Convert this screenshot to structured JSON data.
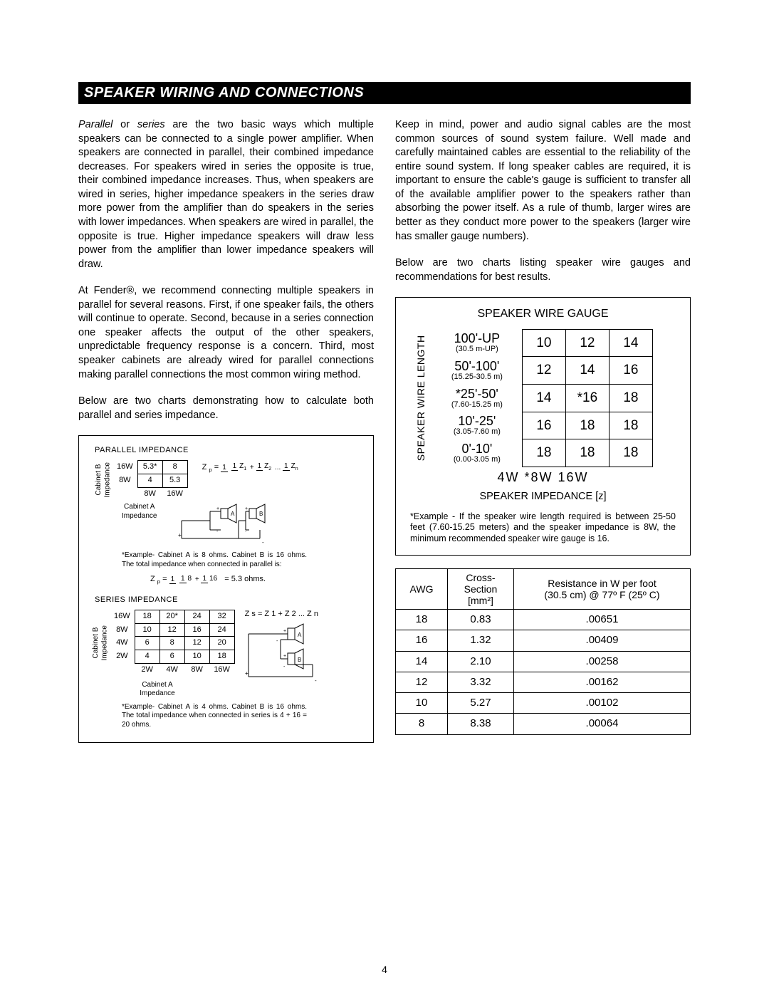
{
  "title": "SPEAKER WIRING AND CONNECTIONS",
  "page_number": "4",
  "left": {
    "p1_a": "Parallel",
    "p1_b": " or ",
    "p1_c": "series",
    "p1_d": " are the two basic ways which multiple speakers can be connected to a single power amplifier. When speakers are connected in parallel, their combined impedance decreases. For speakers wired in series the opposite is true, their combined impedance increases. Thus, when speakers are wired in series, higher impedance speakers in the series draw more power from the amplifier than do speakers in the series with lower impedances. When speakers are wired in parallel, the opposite is true. Higher impedance speakers will draw less power from the amplifier than lower impedance speakers will draw.",
    "p2": "At Fender®, we recommend connecting multiple speakers in parallel for several reasons. First, if one speaker fails, the others will continue to operate. Second, because in a series connection one speaker affects the output of the other speakers, unpredictable frequency response is a concern. Third, most speaker cabinets are already wired for parallel connections making parallel connections the most common wiring method.",
    "p3": "Below are two charts demonstrating how to calculate both parallel and series impedance.",
    "chart": {
      "parallel_title": "PARALLEL  IMPEDANCE",
      "series_title": "SERIES  IMPEDANCE",
      "cabB_label": "Cabinet B\nImpedance",
      "cabA_label": "Cabinet A\nImpedance",
      "parallel_rows": {
        "row_hdr": [
          "16W",
          "8W"
        ],
        "col_hdr": [
          "8W",
          "16W"
        ],
        "cells": [
          [
            "5.3*",
            "8"
          ],
          [
            "4",
            "5.3"
          ]
        ]
      },
      "parallel_formula_label": "Z p =",
      "parallel_example": "*Example- Cabinet A is 8 ohms. Cabinet B is 16 ohms. The total impedance when connected in parallel is:",
      "parallel_result": "= 5.3 ohms.",
      "series_rows": {
        "row_hdr": [
          "16W",
          "8W",
          "4W",
          "2W"
        ],
        "col_hdr": [
          "2W",
          "4W",
          "8W",
          "16W"
        ],
        "cells": [
          [
            "18",
            "20*",
            "24",
            "32"
          ],
          [
            "10",
            "12",
            "16",
            "24"
          ],
          [
            "6",
            "8",
            "12",
            "20"
          ],
          [
            "4",
            "6",
            "10",
            "18"
          ]
        ]
      },
      "series_formula": "Z s  =   Z 1 +  Z 2 ... Z n",
      "series_example": "*Example- Cabinet A is 4 ohms. Cabinet B is 16 ohms. The total impedance when connected in series is  4  +  16  =  20 ohms."
    }
  },
  "right": {
    "p1": "Keep in mind, power and audio signal cables are the most common sources of sound system failure. Well made and carefully maintained cables are essential to the reliability of the entire sound system. If long speaker cables are required, it is important to ensure the cable's gauge is sufficient to transfer all of the available amplifier power to the speakers rather than absorbing the power itself. As a rule of thumb, larger wires are better as they conduct more power to the speakers (larger wire has smaller gauge numbers).",
    "p2": "Below are two charts listing speaker wire gauges and recommendations for best results.",
    "gauge": {
      "title": "SPEAKER WIRE GAUGE",
      "vlabel": "SPEAKER WIRE LENGTH",
      "rows": [
        {
          "hdr": "100'-UP",
          "sub": "(30.5 m-UP)",
          "cells": [
            "10",
            "12",
            "14"
          ]
        },
        {
          "hdr": "50'-100'",
          "sub": "(15.25-30.5 m)",
          "cells": [
            "12",
            "14",
            "16"
          ]
        },
        {
          "hdr": "*25'-50'",
          "sub": "(7.60-15.25 m)",
          "cells": [
            "14",
            "*16",
            "18"
          ]
        },
        {
          "hdr": "10'-25'",
          "sub": "(3.05-7.60 m)",
          "cells": [
            "16",
            "18",
            "18"
          ]
        },
        {
          "hdr": "0'-10'",
          "sub": "(0.00-3.05 m)",
          "cells": [
            "18",
            "18",
            "18"
          ]
        }
      ],
      "col_footer": "4W  *8W  16W",
      "sub_title": "SPEAKER IMPEDANCE [z]",
      "example": "*Example - If the speaker wire length required is between 25-50 feet (7.60-15.25 meters) and the speaker impedance is 8W, the minimum recommended speaker wire gauge is 16."
    },
    "awg": {
      "headers": [
        "AWG",
        "Cross-\nSection\n[mm²]",
        "Resistance in W per foot\n(30.5 cm) @ 77º F (25º C)"
      ],
      "rows": [
        [
          "18",
          "0.83",
          ".00651"
        ],
        [
          "16",
          "1.32",
          ".00409"
        ],
        [
          "14",
          "2.10",
          ".00258"
        ],
        [
          "12",
          "3.32",
          ".00162"
        ],
        [
          "10",
          "5.27",
          ".00102"
        ],
        [
          "8",
          "8.38",
          ".00064"
        ]
      ]
    }
  }
}
